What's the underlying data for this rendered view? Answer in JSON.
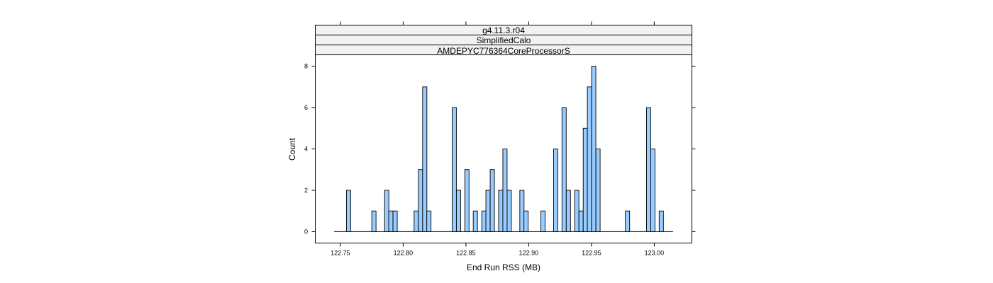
{
  "chart_data": {
    "type": "bar",
    "strips": [
      "g4.11.3.r04",
      "SimplifiedCalo",
      "AMDEPYC776364CoreProcessorS"
    ],
    "xlabel": "End Run RSS (MB)",
    "ylabel": "Count",
    "xlim": [
      122.73,
      123.03
    ],
    "ylim": [
      -0.55,
      8.55
    ],
    "xticks": [
      "122.75",
      "122.80",
      "122.85",
      "122.90",
      "122.95",
      "123.00"
    ],
    "yticks": [
      "0",
      "2",
      "4",
      "6",
      "8"
    ],
    "baseline": [
      122.745,
      123.015
    ],
    "bin_width": 0.00337,
    "bins": [
      {
        "x": 122.7565,
        "count": 2
      },
      {
        "x": 122.7767,
        "count": 1
      },
      {
        "x": 122.7869,
        "count": 2
      },
      {
        "x": 122.7902,
        "count": 1
      },
      {
        "x": 122.7936,
        "count": 1
      },
      {
        "x": 122.8104,
        "count": 1
      },
      {
        "x": 122.8138,
        "count": 3
      },
      {
        "x": 122.8172,
        "count": 7
      },
      {
        "x": 122.8205,
        "count": 1
      },
      {
        "x": 122.8407,
        "count": 6
      },
      {
        "x": 122.8441,
        "count": 2
      },
      {
        "x": 122.8508,
        "count": 3
      },
      {
        "x": 122.8575,
        "count": 1
      },
      {
        "x": 122.8643,
        "count": 1
      },
      {
        "x": 122.8676,
        "count": 2
      },
      {
        "x": 122.871,
        "count": 3
      },
      {
        "x": 122.8777,
        "count": 2
      },
      {
        "x": 122.8811,
        "count": 4
      },
      {
        "x": 122.8845,
        "count": 2
      },
      {
        "x": 122.8946,
        "count": 2
      },
      {
        "x": 122.8979,
        "count": 1
      },
      {
        "x": 122.9114,
        "count": 1
      },
      {
        "x": 122.9215,
        "count": 4
      },
      {
        "x": 122.9282,
        "count": 6
      },
      {
        "x": 122.9316,
        "count": 2
      },
      {
        "x": 122.9383,
        "count": 2
      },
      {
        "x": 122.9417,
        "count": 1
      },
      {
        "x": 122.9451,
        "count": 5
      },
      {
        "x": 122.9484,
        "count": 7
      },
      {
        "x": 122.9518,
        "count": 8
      },
      {
        "x": 122.9552,
        "count": 4
      },
      {
        "x": 122.9787,
        "count": 1
      },
      {
        "x": 122.9955,
        "count": 6
      },
      {
        "x": 122.9989,
        "count": 4
      },
      {
        "x": 123.0056,
        "count": 1
      }
    ],
    "colors": {
      "bar_fill": "#99ccff",
      "bar_stroke": "#000000",
      "strip_fill": "#f2f2f2"
    },
    "grid": false
  }
}
